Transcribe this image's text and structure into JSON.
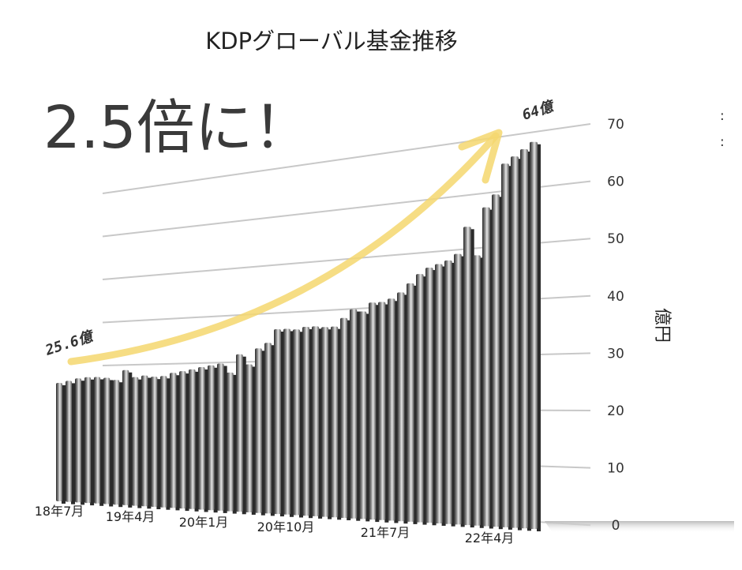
{
  "chart_data": {
    "type": "bar",
    "title": "KDPグローバル基金推移",
    "ylabel": "億円",
    "ylim": [
      0,
      70
    ],
    "yticks": [
      "0",
      "10",
      "20",
      "30",
      "40",
      "50",
      "60",
      "70"
    ],
    "grid": true,
    "x_tick_labels": [
      "18年7月",
      "19年4月",
      "20年1月",
      "20年10月",
      "21年7月",
      "22年4月"
    ],
    "categories": [
      "2018-07",
      "2018-08",
      "2018-09",
      "2018-10",
      "2018-11",
      "2018-12",
      "2019-01",
      "2019-02",
      "2019-03",
      "2019-04",
      "2019-05",
      "2019-06",
      "2019-07",
      "2019-08",
      "2019-09",
      "2019-10",
      "2019-11",
      "2019-12",
      "2020-01",
      "2020-02",
      "2020-03",
      "2020-04",
      "2020-05",
      "2020-06",
      "2020-07",
      "2020-08",
      "2020-09",
      "2020-10",
      "2020-11",
      "2020-12",
      "2021-01",
      "2021-02",
      "2021-03",
      "2021-04",
      "2021-05",
      "2021-06",
      "2021-07",
      "2021-08",
      "2021-09",
      "2021-10",
      "2021-11",
      "2021-12",
      "2022-01",
      "2022-02",
      "2022-03",
      "2022-04",
      "2022-05",
      "2022-06",
      "2022-07",
      "2022-08",
      "2022-09"
    ],
    "values": [
      25.6,
      26,
      26.5,
      26.7,
      26.7,
      26.5,
      26,
      28,
      26.5,
      26.8,
      26.5,
      26.6,
      27.2,
      27.5,
      27.8,
      28.2,
      28.5,
      28.8,
      27,
      30.5,
      28.5,
      31.5,
      32.5,
      35,
      35,
      34.8,
      35.2,
      35.2,
      35,
      35,
      36.5,
      38,
      37.5,
      39,
      39,
      39.5,
      40.5,
      42,
      43.5,
      44.5,
      45,
      45.5,
      46.5,
      51,
      46,
      54,
      56,
      61,
      62,
      63,
      64
    ],
    "annotations": {
      "headline": "2.5倍に！",
      "start_label": "25.6億",
      "end_label": "64億",
      "corner_marks": ":"
    },
    "colors": {
      "arrow": "#f5d76e",
      "grid": "#c8c8c8",
      "bar": "#555555"
    }
  }
}
